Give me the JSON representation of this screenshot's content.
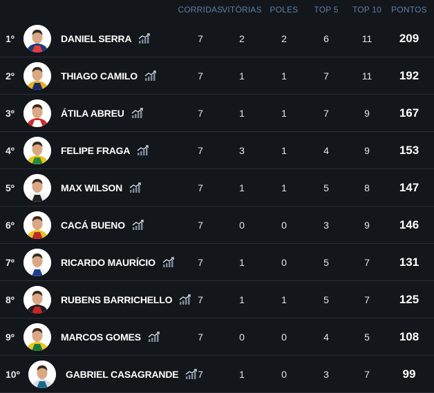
{
  "header": {
    "corridas": "CORRIDAS",
    "vitorias": "VITÓRIAS",
    "poles": "POLES",
    "top5": "TOP 5",
    "top10": "TOP 10",
    "pontos": "PONTOS"
  },
  "icons": {
    "avatar": "driver-helmet-icon",
    "stats": "chart-trend-icon"
  },
  "colors": {
    "header": "#5f7fa6",
    "background": "#13161b",
    "separator": "#2a2f37"
  },
  "rows": [
    {
      "pos": "1º",
      "name": "DANIEL SERRA",
      "corridas": "7",
      "vitorias": "2",
      "poles": "2",
      "top5": "6",
      "top10": "11",
      "pontos": "209",
      "helmet": "#1a3a7a",
      "trim": "#e23b3b"
    },
    {
      "pos": "2º",
      "name": "THIAGO CAMILO",
      "corridas": "7",
      "vitorias": "1",
      "poles": "1",
      "top5": "7",
      "top10": "11",
      "pontos": "192",
      "helmet": "#e8b021",
      "trim": "#1a2a6a"
    },
    {
      "pos": "3º",
      "name": "ÁTILA ABREU",
      "corridas": "7",
      "vitorias": "1",
      "poles": "1",
      "top5": "7",
      "top10": "9",
      "pontos": "167",
      "helmet": "#d32a2a",
      "trim": "#ffffff"
    },
    {
      "pos": "4º",
      "name": "FELIPE FRAGA",
      "corridas": "7",
      "vitorias": "3",
      "poles": "1",
      "top5": "4",
      "top10": "9",
      "pontos": "153",
      "helmet": "#e8c41f",
      "trim": "#2a8a3a"
    },
    {
      "pos": "5º",
      "name": "MAX WILSON",
      "corridas": "7",
      "vitorias": "1",
      "poles": "1",
      "top5": "5",
      "top10": "8",
      "pontos": "147",
      "helmet": "#f0f0f0",
      "trim": "#222222"
    },
    {
      "pos": "6º",
      "name": "CACÁ BUENO",
      "corridas": "7",
      "vitorias": "0",
      "poles": "0",
      "top5": "3",
      "top10": "9",
      "pontos": "146",
      "helmet": "#e8c41f",
      "trim": "#c2272d"
    },
    {
      "pos": "7º",
      "name": "RICARDO MAURÍCIO",
      "corridas": "7",
      "vitorias": "1",
      "poles": "0",
      "top5": "5",
      "top10": "7",
      "pontos": "131",
      "helmet": "#f2f2f2",
      "trim": "#1f3f8a"
    },
    {
      "pos": "8º",
      "name": "RUBENS BARRICHELLO",
      "corridas": "7",
      "vitorias": "1",
      "poles": "1",
      "top5": "5",
      "top10": "7",
      "pontos": "125",
      "helmet": "#1c1c1c",
      "trim": "#c4262c"
    },
    {
      "pos": "9º",
      "name": "MARCOS GOMES",
      "corridas": "7",
      "vitorias": "0",
      "poles": "0",
      "top5": "4",
      "top10": "5",
      "pontos": "108",
      "helmet": "#e8c41f",
      "trim": "#1a7a3a"
    },
    {
      "pos": "10º",
      "name": "GABRIEL CASAGRANDE",
      "corridas": "7",
      "vitorias": "1",
      "poles": "0",
      "top5": "3",
      "top10": "7",
      "pontos": "99",
      "helmet": "#d8dee6",
      "trim": "#1a6a8a"
    }
  ]
}
